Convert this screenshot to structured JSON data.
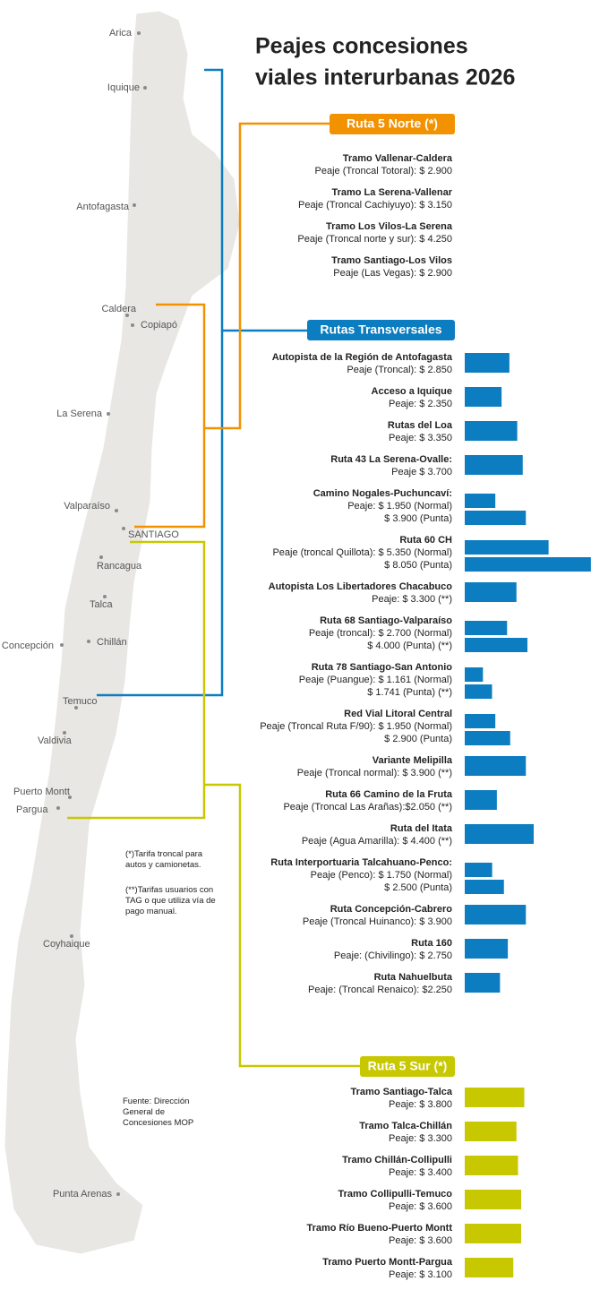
{
  "title": [
    "Peajes concesiones",
    "viales interurbanas 2026"
  ],
  "cities": [
    "Arica",
    "Iquique",
    "Antofagasta",
    "Caldera",
    "Copiapó",
    "La Serena",
    "Valparaíso",
    "SANTIAGO",
    "Rancagua",
    "Talca",
    "Concepción",
    "Chillán",
    "Temuco",
    "Valdivia",
    "Puerto Montt",
    "Pargua",
    "Coyhaique",
    "Punta Arenas"
  ],
  "sections": [
    {
      "title": "Ruta 5 Norte (*)",
      "items": [
        {
          "name": "Tramo Vallenar-Caldera",
          "lines": [
            {
              "text": "Peaje (Troncal Totoral): $ 2.900"
            }
          ]
        },
        {
          "name": "Tramo La Serena-Vallenar",
          "lines": [
            {
              "text": "Peaje (Troncal Cachiyuyo): $ 3.150"
            }
          ]
        },
        {
          "name": "Tramo Los Vilos-La Serena",
          "lines": [
            {
              "text": "Peaje (Troncal norte y sur): $ 4.250"
            }
          ]
        },
        {
          "name": "Tramo Santiago-Los Vilos",
          "lines": [
            {
              "text": "Peaje (Las Vegas): $ 2.900"
            }
          ]
        }
      ]
    },
    {
      "title": "Rutas Transversales",
      "color": "#0b7dc0",
      "items": [
        {
          "name": "Autopista de la Región de Antofagasta",
          "lines": [
            {
              "text": "Peaje (Troncal): $ 2.850",
              "value": 2850
            }
          ]
        },
        {
          "name": "Acceso a Iquique",
          "lines": [
            {
              "text": "Peaje: $ 2.350",
              "value": 2350
            }
          ]
        },
        {
          "name": "Rutas del Loa",
          "lines": [
            {
              "text": "Peaje: $ 3.350",
              "value": 3350
            }
          ]
        },
        {
          "name": "Ruta 43 La Serena-Ovalle:",
          "lines": [
            {
              "text": "Peaje $ 3.700",
              "value": 3700
            }
          ]
        },
        {
          "name": "Camino Nogales-Puchuncaví:",
          "lines": [
            {
              "text": "Peaje:  $ 1.950 (Normal)",
              "value": 1950
            },
            {
              "text": "$ 3.900 (Punta)",
              "value": 3900
            }
          ]
        },
        {
          "name": "Ruta 60 CH",
          "lines": [
            {
              "text": "Peaje (troncal Quillota): $ 5.350 (Normal)",
              "value": 5350
            },
            {
              "text": "$ 8.050 (Punta)",
              "value": 8050
            }
          ]
        },
        {
          "name": "Autopista Los Libertadores Chacabuco",
          "lines": [
            {
              "text": "Peaje: $ 3.300 (**)",
              "value": 3300
            }
          ]
        },
        {
          "name": "Ruta 68 Santiago-Valparaíso",
          "lines": [
            {
              "text": "Peaje (troncal): $ 2.700 (Normal)",
              "value": 2700
            },
            {
              "text": "$ 4.000 (Punta) (**)",
              "value": 4000
            }
          ]
        },
        {
          "name": "Ruta 78 Santiago-San Antonio",
          "lines": [
            {
              "text": "Peaje (Puangue): $ 1.161 (Normal)",
              "value": 1161
            },
            {
              "text": "$ 1.741 (Punta) (**)",
              "value": 1741
            }
          ]
        },
        {
          "name": "Red Vial Litoral Central",
          "lines": [
            {
              "text": "Peaje (Troncal Ruta F/90): $ 1.950 (Normal)",
              "value": 1950
            },
            {
              "text": "$ 2.900 (Punta)",
              "value": 2900
            }
          ]
        },
        {
          "name": "Variante Melipilla",
          "lines": [
            {
              "text": "Peaje (Troncal normal):  $ 3.900  (**)",
              "value": 3900
            }
          ]
        },
        {
          "name": "Ruta 66 Camino de la Fruta",
          "lines": [
            {
              "text": "Peaje (Troncal Las Arañas):$2.050 (**)",
              "value": 2050
            }
          ]
        },
        {
          "name": "Ruta del Itata",
          "lines": [
            {
              "text": "Peaje (Agua Amarilla):  $ 4.400 (**)",
              "value": 4400
            }
          ]
        },
        {
          "name": "Ruta Interportuaria  Talcahuano-Penco:",
          "lines": [
            {
              "text": "Peaje (Penco): $ 1.750 (Normal)",
              "value": 1750
            },
            {
              "text": "$ 2.500 (Punta)",
              "value": 2500
            }
          ]
        },
        {
          "name": "Ruta Concepción-Cabrero",
          "lines": [
            {
              "text": "Peaje (Troncal Huinanco): $ 3.900",
              "value": 3900
            }
          ]
        },
        {
          "name": "Ruta 160",
          "lines": [
            {
              "text": "Peaje: (Chivilingo): $ 2.750",
              "value": 2750
            }
          ]
        },
        {
          "name": "Ruta Nahuelbuta",
          "lines": [
            {
              "text": "Peaje: (Troncal Renaico): $2.250",
              "value": 2250
            }
          ]
        }
      ]
    },
    {
      "title": "Ruta 5 Sur (*)",
      "color": "#c8c800",
      "items": [
        {
          "name": "Tramo Santiago-Talca",
          "lines": [
            {
              "text": "Peaje: $ 3.800",
              "value": 3800
            }
          ]
        },
        {
          "name": "Tramo Talca-Chillán",
          "lines": [
            {
              "text": "Peaje: $ 3.300",
              "value": 3300
            }
          ]
        },
        {
          "name": "Tramo Chillán-Collipulli",
          "lines": [
            {
              "text": "Peaje: $ 3.400",
              "value": 3400
            }
          ]
        },
        {
          "name": "Tramo Collipulli-Temuco",
          "lines": [
            {
              "text": "Peaje: $ 3.600",
              "value": 3600
            }
          ]
        },
        {
          "name": "Tramo Río Bueno-Puerto Montt",
          "lines": [
            {
              "text": "Peaje: $ 3.600",
              "value": 3600
            }
          ]
        },
        {
          "name": "Tramo Puerto Montt-Pargua",
          "lines": [
            {
              "text": "Peaje: $ 3.100",
              "value": 3100
            }
          ]
        }
      ]
    }
  ],
  "notes": [
    "(*)Tarifa troncal para autos y camionetas.",
    "(**)Tarifas usuarios con TAG o que utiliza vía de pago manual."
  ],
  "source": "Fuente: Dirección General de Concesiones MOP"
}
